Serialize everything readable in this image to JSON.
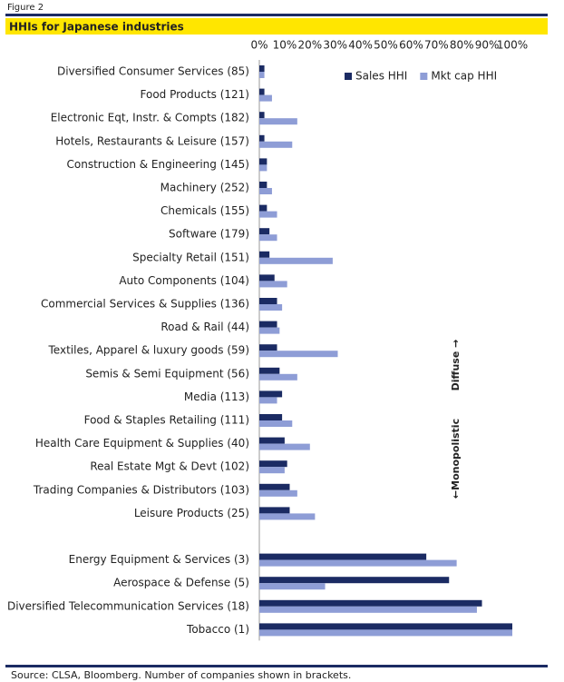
{
  "chart_data": {
    "type": "barh",
    "figure_label": "Figure 2",
    "title": "HHIs for Japanese industries",
    "source": "Source: CLSA, Bloomberg. Number of companies shown in brackets.",
    "categories": [
      "Diversified Consumer Services (85)",
      "Food Products (121)",
      "Electronic Eqt, Instr. & Compts (182)",
      "Hotels, Restaurants & Leisure (157)",
      "Construction & Engineering (145)",
      "Machinery (252)",
      "Chemicals (155)",
      "Software (179)",
      "Specialty Retail (151)",
      "Auto Components (104)",
      "Commercial Services & Supplies (136)",
      "Road & Rail (44)",
      "Textiles, Apparel & luxury goods (59)",
      "Semis & Semi Equipment (56)",
      "Media (113)",
      "Food & Staples Retailing (111)",
      "Health Care Equipment & Supplies (40)",
      "Real Estate Mgt & Devt (102)",
      "Trading Companies & Distributors (103)",
      "Leisure Products (25)",
      null,
      "Energy Equipment & Services (3)",
      "Aerospace & Defense (5)",
      "Diversified Telecommunication Services (18)",
      "Tobacco (1)"
    ],
    "series": [
      {
        "name": "Sales HHI",
        "color": "#1b2b63",
        "values": [
          2,
          2,
          2,
          2,
          3,
          3,
          3,
          4,
          4,
          6,
          7,
          7,
          7,
          8,
          9,
          9,
          10,
          11,
          12,
          12,
          null,
          66,
          75,
          88,
          100
        ]
      },
      {
        "name": "Mkt cap HHI",
        "color": "#8e9dd6",
        "values": [
          2,
          5,
          15,
          13,
          3,
          5,
          7,
          7,
          29,
          11,
          9,
          8,
          31,
          15,
          7,
          13,
          20,
          10,
          15,
          22,
          null,
          78,
          26,
          86,
          100
        ]
      }
    ],
    "xlim": [
      0,
      100
    ],
    "xticks": [
      {
        "value": 0,
        "label": "0%"
      },
      {
        "value": 10,
        "label": "10%"
      },
      {
        "value": 20,
        "label": "20%"
      },
      {
        "value": 30,
        "label": "30%"
      },
      {
        "value": 40,
        "label": "40%"
      },
      {
        "value": 50,
        "label": "50%"
      },
      {
        "value": 60,
        "label": "60%"
      },
      {
        "value": 70,
        "label": "70%"
      },
      {
        "value": 80,
        "label": "80%"
      },
      {
        "value": 90,
        "label": "90%"
      },
      {
        "value": 100,
        "label": "100%"
      }
    ],
    "legend": "upper right",
    "grid": false,
    "annotations": [
      "Diffuse →",
      "←Monopolistic"
    ]
  }
}
